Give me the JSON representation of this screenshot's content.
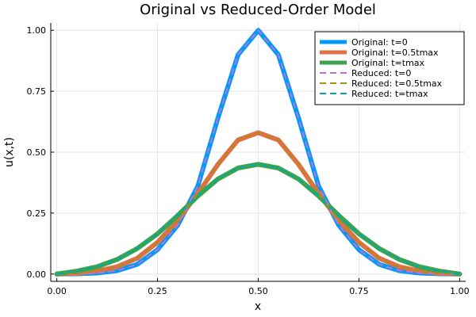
{
  "chart_data": {
    "type": "line",
    "title": "Original vs Reduced-Order Model",
    "xlabel": "x",
    "ylabel": "u(x,t)",
    "xlim": [
      -0.015,
      1.015
    ],
    "ylim": [
      -0.03,
      1.03
    ],
    "xticks": [
      0.0,
      0.25,
      0.5,
      0.75,
      1.0
    ],
    "xtick_labels": [
      "0.00",
      "0.25",
      "0.50",
      "0.75",
      "1.00"
    ],
    "yticks": [
      0.0,
      0.25,
      0.5,
      0.75,
      1.0
    ],
    "ytick_labels": [
      "0.00",
      "0.25",
      "0.50",
      "0.75",
      "1.00"
    ],
    "grid": true,
    "legend_position": "top-right",
    "x": [
      0.0,
      0.05,
      0.1,
      0.15,
      0.2,
      0.25,
      0.3,
      0.35,
      0.4,
      0.45,
      0.5,
      0.55,
      0.6,
      0.65,
      0.7,
      0.75,
      0.8,
      0.85,
      0.9,
      0.95,
      1.0
    ],
    "series": [
      {
        "name": "Original: t=0",
        "color": "#009af9",
        "style": "solid",
        "values": [
          0.0,
          0.001,
          0.004,
          0.014,
          0.04,
          0.1,
          0.2,
          0.36,
          0.64,
          0.9,
          1.0,
          0.9,
          0.64,
          0.36,
          0.2,
          0.1,
          0.04,
          0.014,
          0.004,
          0.001,
          0.0
        ]
      },
      {
        "name": "Original: t=0.5tmax",
        "color": "#e26f46",
        "style": "solid",
        "values": [
          0.0,
          0.003,
          0.012,
          0.03,
          0.065,
          0.13,
          0.22,
          0.33,
          0.45,
          0.55,
          0.58,
          0.55,
          0.45,
          0.33,
          0.22,
          0.13,
          0.065,
          0.03,
          0.012,
          0.003,
          0.0
        ]
      },
      {
        "name": "Original: t=tmax",
        "color": "#3da44d",
        "style": "solid",
        "values": [
          0.0,
          0.012,
          0.03,
          0.06,
          0.105,
          0.165,
          0.24,
          0.32,
          0.39,
          0.435,
          0.45,
          0.435,
          0.39,
          0.32,
          0.24,
          0.165,
          0.105,
          0.06,
          0.03,
          0.012,
          0.0
        ]
      },
      {
        "name": "Reduced: t=0",
        "color": "#c271d2",
        "style": "dashed",
        "values": [
          0.0,
          0.001,
          0.004,
          0.014,
          0.04,
          0.1,
          0.2,
          0.36,
          0.64,
          0.9,
          1.0,
          0.9,
          0.64,
          0.36,
          0.2,
          0.1,
          0.04,
          0.014,
          0.004,
          0.001,
          0.0
        ]
      },
      {
        "name": "Reduced: t=0.5tmax",
        "color": "#ac8d18",
        "style": "dashed",
        "values": [
          0.0,
          0.003,
          0.012,
          0.03,
          0.065,
          0.13,
          0.22,
          0.33,
          0.45,
          0.55,
          0.58,
          0.55,
          0.45,
          0.33,
          0.22,
          0.13,
          0.065,
          0.03,
          0.012,
          0.003,
          0.0
        ]
      },
      {
        "name": "Reduced: t=tmax",
        "color": "#00a9ad",
        "style": "dashed",
        "values": [
          0.0,
          0.012,
          0.03,
          0.06,
          0.105,
          0.165,
          0.24,
          0.32,
          0.39,
          0.435,
          0.45,
          0.435,
          0.39,
          0.32,
          0.24,
          0.165,
          0.105,
          0.06,
          0.03,
          0.012,
          0.0
        ]
      }
    ]
  }
}
